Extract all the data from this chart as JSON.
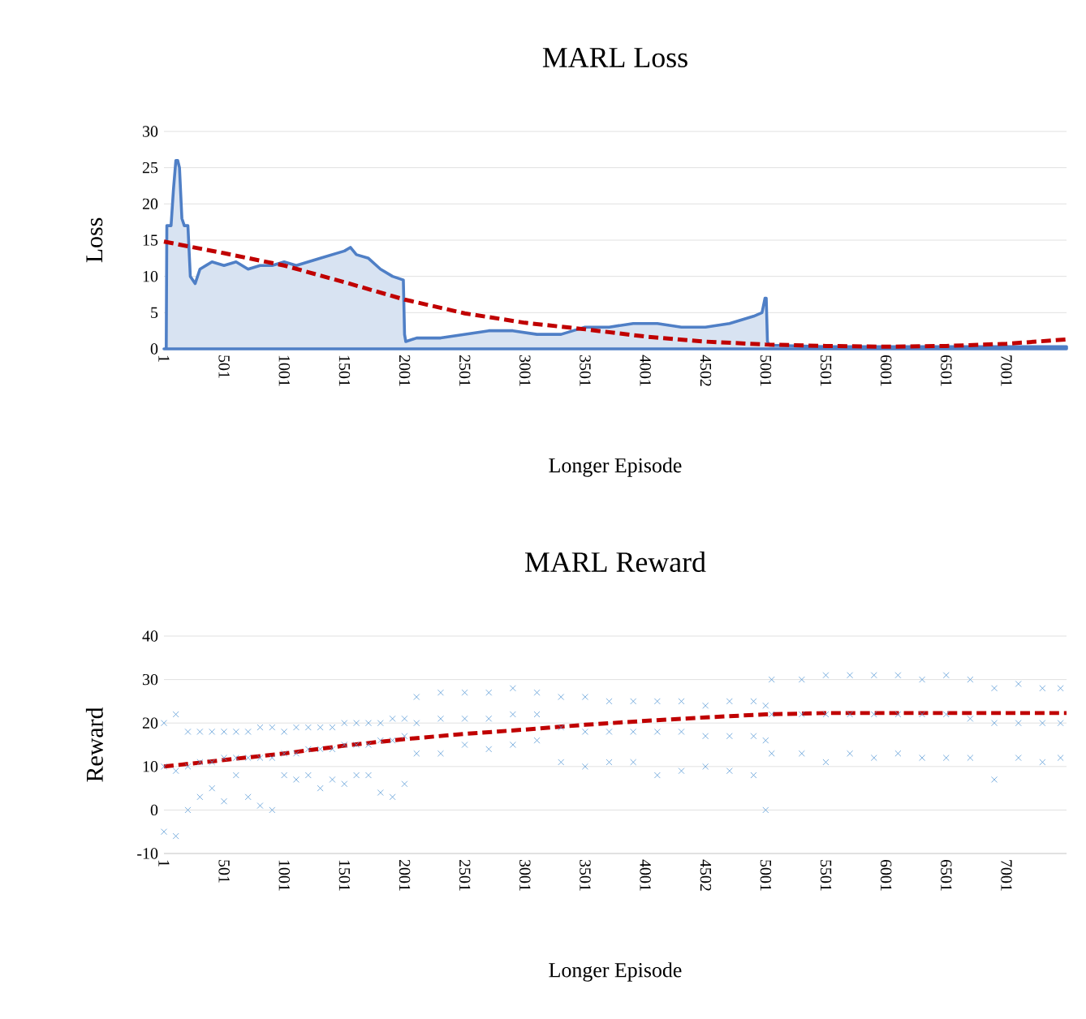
{
  "chart_data": [
    {
      "type": "area",
      "title": "MARL Loss",
      "xlabel": "Longer Episode",
      "ylabel": "Loss",
      "grid": "y",
      "xlim": [
        1,
        7500
      ],
      "ylim": [
        0,
        30
      ],
      "yticks": [
        0,
        5,
        10,
        15,
        20,
        25,
        30
      ],
      "xticks": [
        1,
        501,
        1001,
        1501,
        2001,
        2501,
        3001,
        3501,
        4001,
        4502,
        5001,
        5501,
        6001,
        6501,
        7001
      ],
      "series": [
        {
          "color": "#4f7fc6",
          "x": [
            1,
            20,
            25,
            60,
            80,
            100,
            115,
            130,
            150,
            170,
            200,
            220,
            260,
            300,
            400,
            500,
            600,
            700,
            800,
            900,
            1000,
            1100,
            1200,
            1300,
            1400,
            1500,
            1550,
            1600,
            1700,
            1800,
            1900,
            1990,
            2000,
            2010,
            2100,
            2300,
            2500,
            2700,
            2900,
            3100,
            3300,
            3400,
            3500,
            3700,
            3900,
            4100,
            4300,
            4500,
            4700,
            4900,
            4970,
            4995,
            5005,
            5015,
            5030,
            5500,
            6000,
            6500,
            7000,
            7500
          ],
          "values": [
            0,
            0,
            17,
            17,
            22,
            26,
            26,
            25,
            18,
            17,
            17,
            10,
            9,
            11,
            12,
            11.5,
            12,
            11,
            11.5,
            11.5,
            12,
            11.5,
            12,
            12.5,
            13,
            13.5,
            14,
            13,
            12.5,
            11,
            10,
            9.5,
            2,
            1,
            1.5,
            1.5,
            2,
            2.5,
            2.5,
            2,
            2,
            2.5,
            3,
            3,
            3.5,
            3.5,
            3,
            3,
            3.5,
            4.5,
            5,
            7,
            7,
            1,
            0.5,
            0.3,
            0.3,
            0.3,
            0.3,
            0.3
          ]
        },
        {
          "type": "line",
          "line_style": "dashed",
          "color": "#c00000",
          "x": [
            1,
            500,
            1000,
            1500,
            2000,
            2500,
            3000,
            3500,
            4000,
            4500,
            5000,
            5500,
            6000,
            6500,
            7000,
            7500
          ],
          "values": [
            14.8,
            13.2,
            11.5,
            9.2,
            6.8,
            4.9,
            3.6,
            2.7,
            1.7,
            1.0,
            0.6,
            0.4,
            0.3,
            0.4,
            0.7,
            1.3
          ]
        }
      ]
    },
    {
      "type": "scatter",
      "title": "MARL Reward",
      "xlabel": "Longer Episode",
      "ylabel": "Reward",
      "grid": "y",
      "xlim": [
        1,
        7500
      ],
      "ylim": [
        -10,
        40
      ],
      "yticks": [
        -10,
        0,
        10,
        20,
        30,
        40
      ],
      "xticks": [
        1,
        501,
        1001,
        1501,
        2001,
        2501,
        3001,
        3501,
        4001,
        4502,
        5001,
        5501,
        6001,
        6501,
        7001
      ],
      "series": [
        {
          "marker": "cross",
          "color": "#5b9bd5",
          "x": [
            1,
            1,
            1,
            100,
            100,
            100,
            200,
            200,
            200,
            300,
            300,
            300,
            400,
            400,
            400,
            500,
            500,
            500,
            600,
            600,
            600,
            700,
            700,
            700,
            800,
            800,
            800,
            900,
            900,
            900,
            1000,
            1000,
            1000,
            1100,
            1100,
            1100,
            1200,
            1200,
            1200,
            1300,
            1300,
            1300,
            1400,
            1400,
            1400,
            1500,
            1500,
            1500,
            1600,
            1600,
            1600,
            1700,
            1700,
            1700,
            1800,
            1800,
            1800,
            1900,
            1900,
            1900,
            2000,
            2000,
            2000,
            2100,
            2100,
            2100,
            2300,
            2300,
            2300,
            2500,
            2500,
            2500,
            2700,
            2700,
            2700,
            2900,
            2900,
            2900,
            3100,
            3100,
            3100,
            3300,
            3300,
            3300,
            3500,
            3500,
            3500,
            3700,
            3700,
            3700,
            3900,
            3900,
            3900,
            4100,
            4100,
            4100,
            4300,
            4300,
            4300,
            4500,
            4500,
            4500,
            4700,
            4700,
            4700,
            4900,
            4900,
            4900,
            5000,
            5000,
            5000,
            5050,
            5050,
            5050,
            5300,
            5300,
            5300,
            5500,
            5500,
            5500,
            5700,
            5700,
            5700,
            5900,
            5900,
            5900,
            6100,
            6100,
            6100,
            6300,
            6300,
            6300,
            6500,
            6500,
            6500,
            6700,
            6700,
            6700,
            6900,
            6900,
            6900,
            7100,
            7100,
            7100,
            7300,
            7300,
            7300,
            7450,
            7450,
            7450
          ],
          "values": [
            20,
            10,
            -5,
            22,
            9,
            -6,
            18,
            10,
            0,
            18,
            11,
            3,
            18,
            11,
            5,
            18,
            12,
            2,
            18,
            12,
            8,
            18,
            12,
            3,
            19,
            12,
            1,
            19,
            12,
            0,
            18,
            13,
            8,
            19,
            13,
            7,
            19,
            14,
            8,
            19,
            14,
            5,
            19,
            14,
            7,
            20,
            15,
            6,
            20,
            15,
            8,
            20,
            15,
            8,
            20,
            16,
            4,
            21,
            16,
            3,
            21,
            17,
            6,
            26,
            20,
            13,
            27,
            21,
            13,
            27,
            21,
            15,
            27,
            21,
            14,
            28,
            22,
            15,
            27,
            22,
            16,
            26,
            19,
            11,
            26,
            18,
            10,
            25,
            18,
            11,
            25,
            18,
            11,
            25,
            18,
            8,
            25,
            18,
            9,
            24,
            17,
            10,
            25,
            17,
            9,
            25,
            17,
            8,
            24,
            16,
            0,
            30,
            22,
            13,
            30,
            22,
            13,
            31,
            22,
            11,
            31,
            22,
            13,
            31,
            22,
            12,
            31,
            22,
            13,
            30,
            22,
            12,
            31,
            22,
            12,
            30,
            21,
            12,
            28,
            20,
            7,
            29,
            20,
            12,
            28,
            20,
            11,
            28,
            20,
            12
          ]
        },
        {
          "type": "line",
          "line_style": "dashed",
          "color": "#c00000",
          "x": [
            1,
            500,
            1000,
            1500,
            2000,
            2500,
            3000,
            3500,
            4000,
            4500,
            5000,
            5500,
            6000,
            6500,
            7000,
            7500
          ],
          "values": [
            10,
            11.5,
            13,
            14.8,
            16.3,
            17.5,
            18.5,
            19.6,
            20.5,
            21.3,
            22,
            22.3,
            22.3,
            22.3,
            22.3,
            22.3
          ]
        }
      ]
    }
  ]
}
